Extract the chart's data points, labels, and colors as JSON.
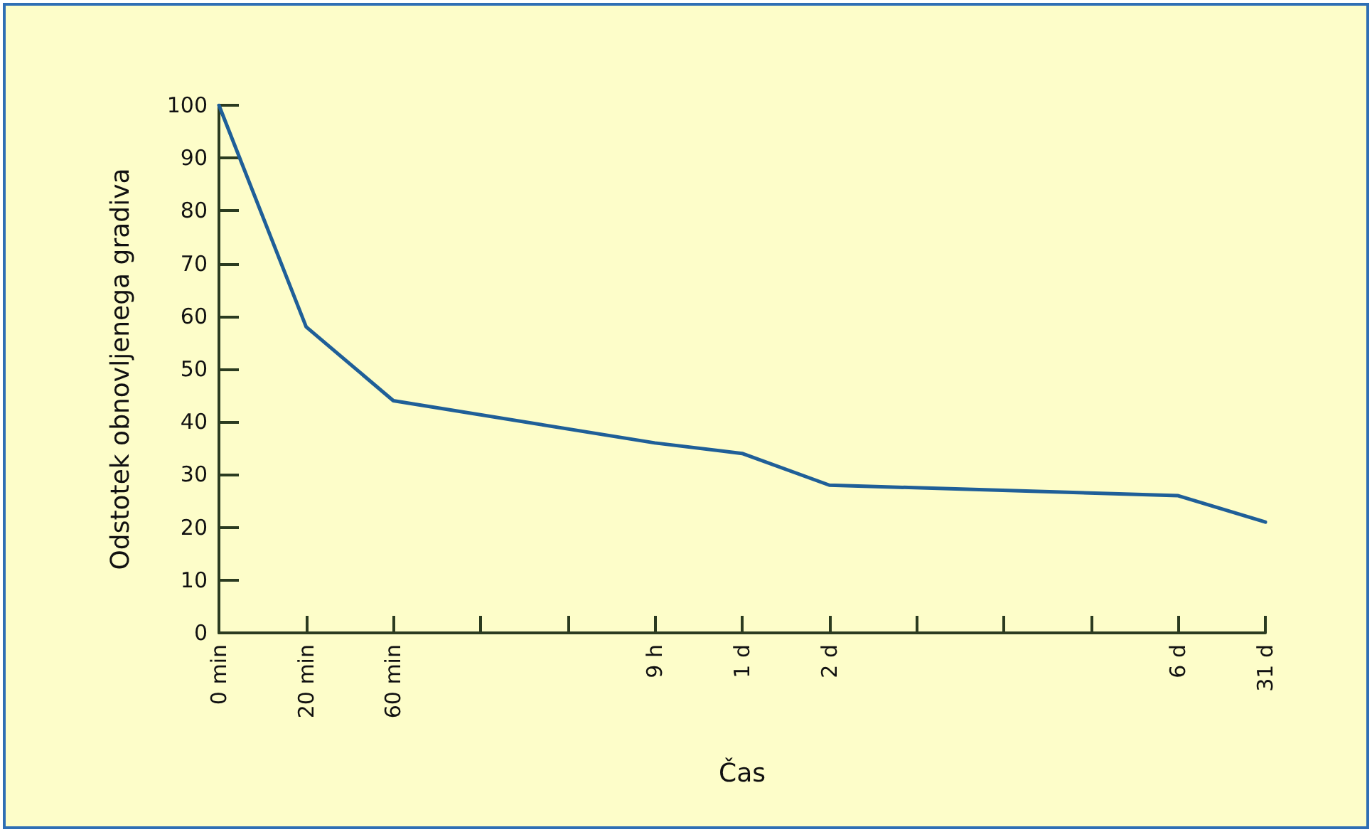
{
  "chart_data": {
    "type": "line",
    "xlabel": "Čas",
    "ylabel": "Odstotek obnovljenega gradiva",
    "categories": [
      "0 min",
      "20 min",
      "60 min",
      null,
      null,
      "9 h",
      "1 d",
      "2 d",
      null,
      null,
      null,
      "6 d",
      "31 d"
    ],
    "series": [
      {
        "color": "#1f5f98",
        "values": [
          100,
          58,
          44,
          null,
          null,
          36,
          34,
          28,
          null,
          null,
          null,
          26,
          21
        ]
      }
    ],
    "ylim": [
      0,
      100
    ],
    "yticks": [
      0,
      10,
      20,
      30,
      40,
      50,
      60,
      70,
      80,
      90,
      100
    ],
    "grid": false,
    "marker": "none",
    "line_style": "solid"
  }
}
